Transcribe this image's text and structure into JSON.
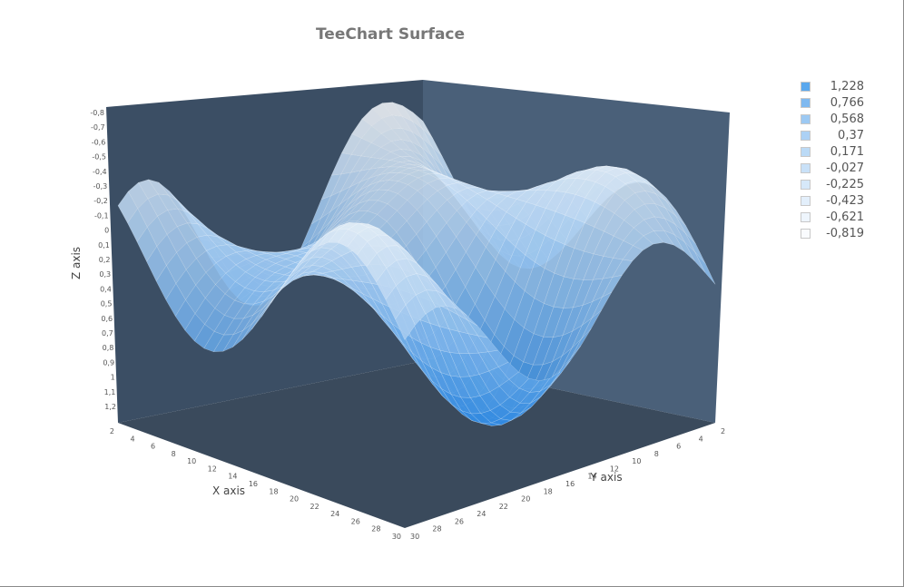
{
  "chart_data": {
    "type": "surface",
    "title": "TeeChart Surface",
    "xlabel": "X axis",
    "ylabel": "Y axis",
    "zlabel": "Z axis",
    "x_ticks": [
      "2",
      "4",
      "6",
      "8",
      "10",
      "12",
      "14",
      "16",
      "18",
      "20",
      "22",
      "24",
      "26",
      "28",
      "30"
    ],
    "y_ticks": [
      "2",
      "4",
      "6",
      "8",
      "10",
      "12",
      "14",
      "16",
      "18",
      "20",
      "22",
      "24",
      "26",
      "28",
      "30"
    ],
    "z_ticks": [
      "-0,8",
      "-0,7",
      "-0,6",
      "-0,5",
      "-0,4",
      "-0,3",
      "-0,2",
      "-0,1",
      "0",
      "0,1",
      "0,2",
      "0,3",
      "0,4",
      "0,5",
      "0,6",
      "0,7",
      "0,8",
      "0,9",
      "1",
      "1,1",
      "1,2"
    ],
    "z_range": [
      -0.8,
      1.2
    ],
    "grid_x": 30,
    "grid_y": 30,
    "legend_position": "right",
    "legend": [
      {
        "label": "1,228",
        "color": "#5aa8ee"
      },
      {
        "label": "0,766",
        "color": "#7fb9f0"
      },
      {
        "label": "0,568",
        "color": "#9cc9f3"
      },
      {
        "label": "0,37",
        "color": "#acd1f5"
      },
      {
        "label": "0,171",
        "color": "#bbdaf6"
      },
      {
        "label": "-0,027",
        "color": "#c9e1f8"
      },
      {
        "label": "-0,225",
        "color": "#d6e8f9"
      },
      {
        "label": "-0,423",
        "color": "#e3effb"
      },
      {
        "label": "-0,621",
        "color": "#eef5fc"
      },
      {
        "label": "-0,819",
        "color": "#f9fbfe"
      }
    ],
    "colors": {
      "back_wall": "#3b4e64",
      "side_wall": "#4a6079",
      "floor": "#3a4a5c",
      "surface_low": "#2a86e0",
      "surface_high": "#f4f6f8"
    }
  }
}
